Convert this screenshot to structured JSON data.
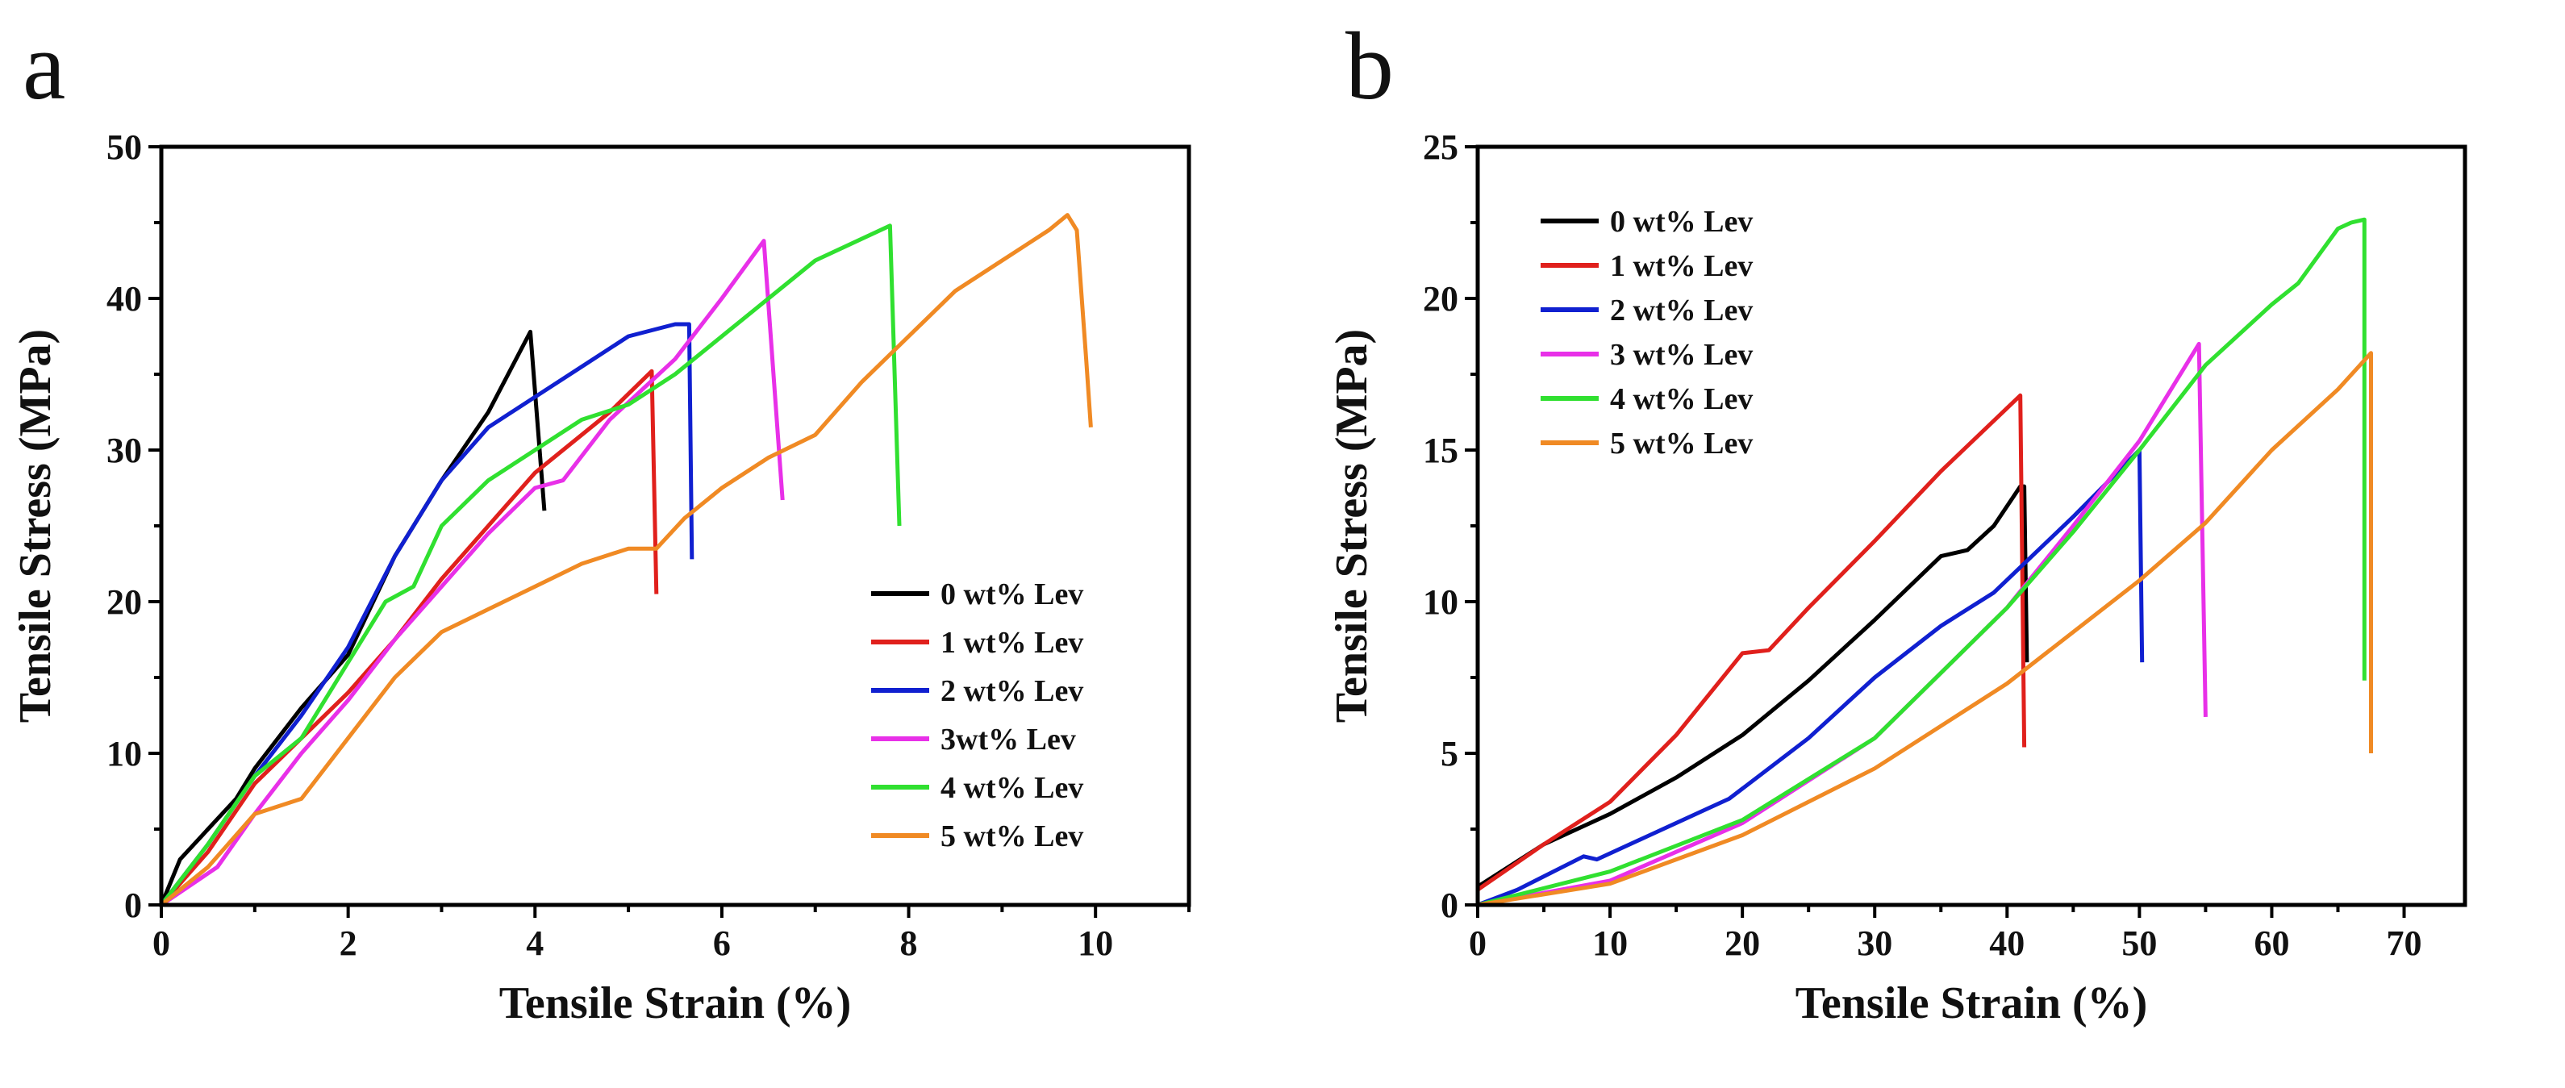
{
  "chart_data": [
    {
      "panel_label": "a",
      "type": "line",
      "xlabel": "Tensile Strain (%)",
      "ylabel": "Tensile Stress (MPa)",
      "xlim": [
        0,
        11
      ],
      "ylim": [
        0,
        50
      ],
      "xticks": [
        0,
        2,
        4,
        6,
        8,
        10
      ],
      "yticks": [
        0,
        10,
        20,
        30,
        40,
        50
      ],
      "xminor": 1,
      "yminor": 5,
      "grid": false,
      "legend_position": "bottom-right",
      "series": [
        {
          "name": "0 wt% Lev",
          "color": "#000000",
          "points": [
            [
              0,
              0
            ],
            [
              0.2,
              3
            ],
            [
              0.5,
              5
            ],
            [
              0.8,
              7
            ],
            [
              1,
              9
            ],
            [
              1.5,
              13
            ],
            [
              2,
              16.5
            ],
            [
              2.5,
              23
            ],
            [
              3,
              28
            ],
            [
              3.5,
              32.5
            ],
            [
              3.95,
              37.8
            ],
            [
              4.1,
              26
            ]
          ]
        },
        {
          "name": "1 wt% Lev",
          "color": "#e0201c",
          "points": [
            [
              0,
              0
            ],
            [
              0.5,
              3.5
            ],
            [
              1,
              8
            ],
            [
              1.5,
              11
            ],
            [
              2,
              14
            ],
            [
              2.5,
              17.5
            ],
            [
              3,
              21.5
            ],
            [
              3.5,
              25
            ],
            [
              4,
              28.5
            ],
            [
              4.3,
              30
            ],
            [
              4.8,
              32.5
            ],
            [
              5.25,
              35.2
            ],
            [
              5.3,
              20.5
            ]
          ]
        },
        {
          "name": "2 wt% Lev",
          "color": "#1020d0",
          "points": [
            [
              0,
              0
            ],
            [
              0.5,
              4
            ],
            [
              1,
              8.5
            ],
            [
              1.5,
              12.5
            ],
            [
              2,
              17
            ],
            [
              2.5,
              23
            ],
            [
              3,
              28
            ],
            [
              3.5,
              31.5
            ],
            [
              4,
              33.5
            ],
            [
              4.5,
              35.5
            ],
            [
              5,
              37.5
            ],
            [
              5.5,
              38.3
            ],
            [
              5.65,
              38.3
            ],
            [
              5.68,
              22.8
            ]
          ]
        },
        {
          "name": "3wt% Lev",
          "color": "#e830e8",
          "points": [
            [
              0,
              0
            ],
            [
              0.6,
              2.5
            ],
            [
              1,
              6
            ],
            [
              1.5,
              10
            ],
            [
              2,
              13.5
            ],
            [
              2.5,
              17.5
            ],
            [
              3,
              21
            ],
            [
              3.5,
              24.5
            ],
            [
              4,
              27.5
            ],
            [
              4.3,
              28
            ],
            [
              4.8,
              32
            ],
            [
              5.5,
              36
            ],
            [
              6,
              40
            ],
            [
              6.45,
              43.8
            ],
            [
              6.65,
              26.7
            ]
          ]
        },
        {
          "name": "4 wt% Lev",
          "color": "#30e030",
          "points": [
            [
              0,
              0
            ],
            [
              0.5,
              4
            ],
            [
              1,
              8.5
            ],
            [
              1.5,
              11
            ],
            [
              2,
              16
            ],
            [
              2.4,
              20
            ],
            [
              2.7,
              21
            ],
            [
              3,
              25
            ],
            [
              3.5,
              28
            ],
            [
              4,
              30
            ],
            [
              4.5,
              32
            ],
            [
              5,
              33
            ],
            [
              5.5,
              35
            ],
            [
              6,
              37.5
            ],
            [
              6.5,
              40
            ],
            [
              7,
              42.5
            ],
            [
              7.8,
              44.8
            ],
            [
              7.9,
              25
            ]
          ]
        },
        {
          "name": "5 wt% Lev",
          "color": "#f08a24",
          "points": [
            [
              0,
              0
            ],
            [
              0.5,
              2.5
            ],
            [
              1,
              6
            ],
            [
              1.5,
              7
            ],
            [
              2,
              11
            ],
            [
              2.5,
              15
            ],
            [
              3,
              18
            ],
            [
              3.5,
              19.5
            ],
            [
              4,
              21
            ],
            [
              4.5,
              22.5
            ],
            [
              5,
              23.5
            ],
            [
              5.3,
              23.5
            ],
            [
              5.6,
              25.5
            ],
            [
              6,
              27.5
            ],
            [
              6.5,
              29.5
            ],
            [
              7,
              31
            ],
            [
              7.5,
              34.5
            ],
            [
              8,
              37.5
            ],
            [
              8.5,
              40.5
            ],
            [
              9,
              42.5
            ],
            [
              9.5,
              44.5
            ],
            [
              9.7,
              45.5
            ],
            [
              9.8,
              44.5
            ],
            [
              9.9,
              36
            ],
            [
              9.95,
              31.5
            ]
          ]
        }
      ]
    },
    {
      "panel_label": "b",
      "type": "line",
      "xlabel": "Tensile Strain (%)",
      "ylabel": "Tensile Stress (MPa)",
      "xlim": [
        0,
        74.6
      ],
      "ylim": [
        0,
        25
      ],
      "xticks": [
        0,
        10,
        20,
        30,
        40,
        50,
        60,
        70
      ],
      "yticks": [
        0,
        5,
        10,
        15,
        20,
        25
      ],
      "xminor": 5,
      "yminor": 2.5,
      "grid": false,
      "legend_position": "top-left",
      "series": [
        {
          "name": "0 wt% Lev",
          "color": "#000000",
          "points": [
            [
              0,
              0.6
            ],
            [
              5,
              2
            ],
            [
              10,
              3
            ],
            [
              15,
              4.2
            ],
            [
              20,
              5.6
            ],
            [
              25,
              7.4
            ],
            [
              30,
              9.4
            ],
            [
              35,
              11.5
            ],
            [
              37,
              11.7
            ],
            [
              39,
              12.5
            ],
            [
              41,
              13.8
            ],
            [
              41.3,
              13.8
            ],
            [
              41.5,
              8
            ]
          ]
        },
        {
          "name": "1 wt% Lev",
          "color": "#e0201c",
          "points": [
            [
              0,
              0.5
            ],
            [
              5,
              2
            ],
            [
              10,
              3.4
            ],
            [
              15,
              5.6
            ],
            [
              20,
              8.3
            ],
            [
              22,
              8.4
            ],
            [
              25,
              9.8
            ],
            [
              30,
              12
            ],
            [
              35,
              14.3
            ],
            [
              41,
              16.8
            ],
            [
              41.3,
              5.2
            ]
          ]
        },
        {
          "name": "2 wt% Lev",
          "color": "#1020d0",
          "points": [
            [
              0,
              0
            ],
            [
              3,
              0.5
            ],
            [
              8,
              1.6
            ],
            [
              9,
              1.5
            ],
            [
              13,
              2.3
            ],
            [
              17,
              3.1
            ],
            [
              19,
              3.5
            ],
            [
              25,
              5.5
            ],
            [
              30,
              7.5
            ],
            [
              35,
              9.2
            ],
            [
              39,
              10.3
            ],
            [
              45,
              12.8
            ],
            [
              50,
              15
            ],
            [
              50.2,
              8
            ]
          ]
        },
        {
          "name": "3 wt% Lev",
          "color": "#e830e8",
          "points": [
            [
              0,
              0
            ],
            [
              10,
              0.8
            ],
            [
              20,
              2.7
            ],
            [
              30,
              5.5
            ],
            [
              40,
              9.8
            ],
            [
              45,
              12.5
            ],
            [
              50,
              15.3
            ],
            [
              54.5,
              18.5
            ],
            [
              55,
              6.2
            ]
          ]
        },
        {
          "name": "4 wt% Lev",
          "color": "#30e030",
          "points": [
            [
              0,
              0
            ],
            [
              10,
              1.1
            ],
            [
              20,
              2.8
            ],
            [
              30,
              5.5
            ],
            [
              40,
              9.8
            ],
            [
              45,
              12.3
            ],
            [
              50,
              15
            ],
            [
              55,
              17.8
            ],
            [
              60,
              19.8
            ],
            [
              62,
              20.5
            ],
            [
              65,
              22.3
            ],
            [
              66,
              22.5
            ],
            [
              67,
              22.6
            ],
            [
              67,
              7.4
            ]
          ]
        },
        {
          "name": "5 wt% Lev",
          "color": "#f08a24",
          "points": [
            [
              0,
              0
            ],
            [
              10,
              0.7
            ],
            [
              20,
              2.3
            ],
            [
              30,
              4.5
            ],
            [
              40,
              7.3
            ],
            [
              50,
              10.7
            ],
            [
              55,
              12.6
            ],
            [
              60,
              15
            ],
            [
              65,
              17
            ],
            [
              67.5,
              18.2
            ],
            [
              67.5,
              5
            ]
          ]
        }
      ]
    }
  ]
}
